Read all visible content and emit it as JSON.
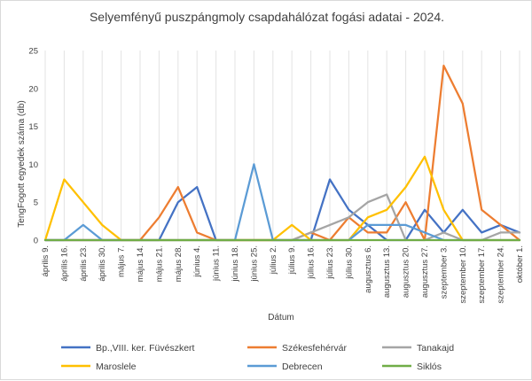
{
  "chart_data": {
    "type": "line",
    "title": "Selyemfényű puszpángmoly csapdahálózat fogási adatai - 2024.",
    "xlabel": "Dátum",
    "ylabel": "TengFogott egyedek száma (db)",
    "ylim": [
      0,
      25
    ],
    "yticks": [
      0,
      5,
      10,
      15,
      20,
      25
    ],
    "grid": "vertical",
    "legend_position": "bottom",
    "categories": [
      "április 9.",
      "április 16.",
      "április 23.",
      "április 30.",
      "május 7.",
      "május 14.",
      "május 21.",
      "május 28.",
      "június 4.",
      "június 11.",
      "június 18.",
      "június 25.",
      "július 2.",
      "július 9.",
      "július 16.",
      "július 23.",
      "július 30.",
      "augusztus 6.",
      "augusztus 13.",
      "augusztus 20.",
      "augusztus 27.",
      "szeptember 3.",
      "szeptember 10.",
      "szeptember 17.",
      "szeptember 24.",
      "október 1."
    ],
    "series": [
      {
        "name": "Bp.,VIII. ker. Füvészkert",
        "color": "#4472C4",
        "values": [
          0,
          0,
          0,
          0,
          0,
          0,
          0,
          5,
          7,
          0,
          0,
          0,
          0,
          0,
          0,
          8,
          4,
          2,
          0,
          0,
          4,
          1,
          4,
          1,
          2,
          1
        ]
      },
      {
        "name": "Székesfehérvár",
        "color": "#ED7D31",
        "values": [
          0,
          0,
          0,
          0,
          0,
          0,
          3,
          7,
          1,
          0,
          0,
          0,
          0,
          0,
          1,
          0,
          3,
          1,
          1,
          5,
          0,
          23,
          18,
          4,
          2,
          0
        ]
      },
      {
        "name": "Tanakajd",
        "color": "#A5A5A5",
        "values": [
          0,
          0,
          0,
          0,
          0,
          0,
          0,
          0,
          0,
          0,
          0,
          0,
          0,
          0,
          1,
          2,
          3,
          5,
          6,
          0,
          0,
          1,
          0,
          0,
          1,
          1
        ]
      },
      {
        "name": "Maroslele",
        "color": "#FFC000",
        "values": [
          0,
          8,
          5,
          2,
          0,
          0,
          0,
          0,
          0,
          0,
          0,
          0,
          0,
          2,
          0,
          0,
          0,
          3,
          4,
          7,
          11,
          4,
          0,
          0,
          0,
          0
        ]
      },
      {
        "name": "Debrecen",
        "color": "#5B9BD5",
        "values": [
          0,
          0,
          2,
          0,
          0,
          0,
          0,
          0,
          0,
          0,
          0,
          10,
          0,
          0,
          0,
          0,
          0,
          2,
          2,
          2,
          1,
          0,
          0,
          0,
          0,
          0
        ]
      },
      {
        "name": "Siklós",
        "color": "#70AD47",
        "values": [
          0,
          0,
          0,
          0,
          0,
          0,
          0,
          0,
          0,
          0,
          0,
          0,
          0,
          0,
          0,
          0,
          0,
          0,
          0,
          0,
          0,
          0,
          0,
          0,
          0,
          0
        ]
      }
    ]
  }
}
